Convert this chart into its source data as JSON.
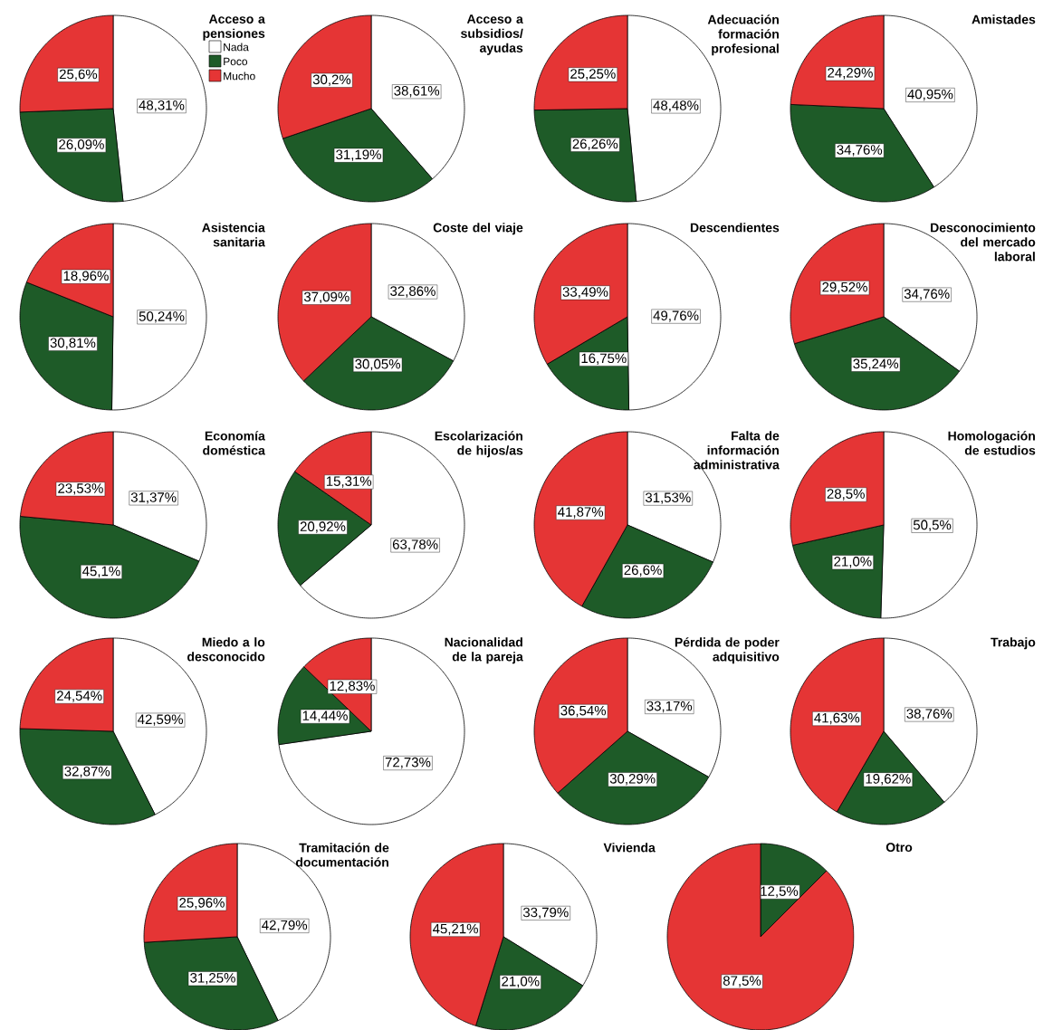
{
  "chart_data": [
    {
      "type": "pie",
      "title": "Acceso a pensiones",
      "categories": [
        "Nada",
        "Poco",
        "Mucho"
      ],
      "values": [
        48.31,
        26.09,
        25.6
      ],
      "colors": [
        "#ffffff",
        "#1e5b28",
        "#e53535"
      ],
      "value_labels": [
        "48,31%",
        "26,09%",
        "25,6%"
      ],
      "legend": "top right"
    },
    {
      "type": "pie",
      "title": "Acceso a subsidios/ ayudas",
      "categories": [
        null,
        null,
        null
      ],
      "values": [
        38.61,
        31.19,
        30.2
      ],
      "colors": [
        "#ffffff",
        "#1e5b28",
        "#e53535"
      ],
      "value_labels": [
        "38,61%",
        "31,19%",
        "30,2%"
      ]
    },
    {
      "type": "pie",
      "title": "Adecuación formación profesional",
      "categories": [
        null,
        null,
        null
      ],
      "values": [
        48.48,
        26.26,
        25.25
      ],
      "colors": [
        "#ffffff",
        "#1e5b28",
        "#e53535"
      ],
      "value_labels": [
        "48,48%",
        "26,26%",
        "25,25%"
      ]
    },
    {
      "type": "pie",
      "title": "Amistades",
      "categories": [
        null,
        null,
        null
      ],
      "values": [
        40.95,
        34.76,
        24.29
      ],
      "colors": [
        "#ffffff",
        "#1e5b28",
        "#e53535"
      ],
      "value_labels": [
        "40,95%",
        "34,76%",
        "24,29%"
      ]
    },
    {
      "type": "pie",
      "title": "Asistencia sanitaria",
      "categories": [
        null,
        null,
        null
      ],
      "values": [
        50.24,
        30.81,
        18.96
      ],
      "colors": [
        "#ffffff",
        "#1e5b28",
        "#e53535"
      ],
      "value_labels": [
        "50,24%",
        "30,81%",
        "18,96%"
      ]
    },
    {
      "type": "pie",
      "title": "Coste del viaje",
      "categories": [
        null,
        null,
        null
      ],
      "values": [
        32.86,
        30.05,
        37.09
      ],
      "colors": [
        "#ffffff",
        "#1e5b28",
        "#e53535"
      ],
      "value_labels": [
        "32,86%",
        "30,05%",
        "37,09%"
      ]
    },
    {
      "type": "pie",
      "title": "Descendientes",
      "categories": [
        null,
        null,
        null
      ],
      "values": [
        49.76,
        16.75,
        33.49
      ],
      "colors": [
        "#ffffff",
        "#1e5b28",
        "#e53535"
      ],
      "value_labels": [
        "49,76%",
        "16,75%",
        "33,49%"
      ]
    },
    {
      "type": "pie",
      "title": "Desconocimiento del mercado laboral",
      "categories": [
        null,
        null,
        null
      ],
      "values": [
        34.76,
        35.24,
        29.52
      ],
      "colors": [
        "#ffffff",
        "#1e5b28",
        "#e53535"
      ],
      "value_labels": [
        "34,76%",
        "35,24%",
        "29,52%"
      ]
    },
    {
      "type": "pie",
      "title": "Economía doméstica",
      "categories": [
        null,
        null,
        null
      ],
      "values": [
        31.37,
        45.1,
        23.53
      ],
      "colors": [
        "#ffffff",
        "#1e5b28",
        "#e53535"
      ],
      "value_labels": [
        "31,37%",
        "45,1%",
        "23,53%"
      ]
    },
    {
      "type": "pie",
      "title": "Escolarización de hijos/as",
      "categories": [
        null,
        null,
        null
      ],
      "values": [
        63.78,
        20.92,
        15.31
      ],
      "colors": [
        "#ffffff",
        "#1e5b28",
        "#e53535"
      ],
      "value_labels": [
        "63,78%",
        "20,92%",
        "15,31%"
      ]
    },
    {
      "type": "pie",
      "title": "Falta de información administrativa",
      "categories": [
        null,
        null,
        null
      ],
      "values": [
        31.53,
        26.6,
        41.87
      ],
      "colors": [
        "#ffffff",
        "#1e5b28",
        "#e53535"
      ],
      "value_labels": [
        "31,53%",
        "26,6%",
        "41,87%"
      ]
    },
    {
      "type": "pie",
      "title": "Homologación de estudios",
      "categories": [
        null,
        null,
        null
      ],
      "values": [
        50.5,
        21.0,
        28.5
      ],
      "colors": [
        "#ffffff",
        "#1e5b28",
        "#e53535"
      ],
      "value_labels": [
        "50,5%",
        "21,0%",
        "28,5%"
      ]
    },
    {
      "type": "pie",
      "title": "Miedo a lo desconocido",
      "categories": [
        null,
        null,
        null
      ],
      "values": [
        42.59,
        32.87,
        24.54
      ],
      "colors": [
        "#ffffff",
        "#1e5b28",
        "#e53535"
      ],
      "value_labels": [
        "42,59%",
        "32,87%",
        "24,54%"
      ]
    },
    {
      "type": "pie",
      "title": "Nacionalidad de la pareja",
      "categories": [
        null,
        null,
        null
      ],
      "values": [
        72.73,
        14.44,
        12.83
      ],
      "colors": [
        "#ffffff",
        "#1e5b28",
        "#e53535"
      ],
      "value_labels": [
        "72,73%",
        "14,44%",
        "12,83%"
      ]
    },
    {
      "type": "pie",
      "title": "Pérdida de poder adquisitivo",
      "categories": [
        null,
        null,
        null
      ],
      "values": [
        33.17,
        30.29,
        36.54
      ],
      "colors": [
        "#ffffff",
        "#1e5b28",
        "#e53535"
      ],
      "value_labels": [
        "33,17%",
        "30,29%",
        "36,54%"
      ]
    },
    {
      "type": "pie",
      "title": "Trabajo",
      "categories": [
        null,
        null,
        null
      ],
      "values": [
        38.76,
        19.62,
        41.63
      ],
      "colors": [
        "#ffffff",
        "#1e5b28",
        "#e53535"
      ],
      "value_labels": [
        "38,76%",
        "19,62%",
        "41,63%"
      ]
    },
    {
      "type": "pie",
      "title": "Tramitación de documentación",
      "categories": [
        null,
        null,
        null
      ],
      "values": [
        42.79,
        31.25,
        25.96
      ],
      "colors": [
        "#ffffff",
        "#1e5b28",
        "#e53535"
      ],
      "value_labels": [
        "42,79%",
        "31,25%",
        "25,96%"
      ]
    },
    {
      "type": "pie",
      "title": "Vivienda",
      "categories": [
        null,
        null,
        null
      ],
      "values": [
        33.79,
        21.0,
        45.21
      ],
      "colors": [
        "#ffffff",
        "#1e5b28",
        "#e53535"
      ],
      "value_labels": [
        "33,79%",
        "21,0%",
        "45,21%"
      ]
    },
    {
      "type": "pie",
      "title": "Otro",
      "categories": [
        null,
        null
      ],
      "values": [
        12.5,
        87.5
      ],
      "colors": [
        "#1e5b28",
        "#e53535"
      ],
      "value_labels": [
        "12,5%",
        "87,5%"
      ]
    }
  ]
}
